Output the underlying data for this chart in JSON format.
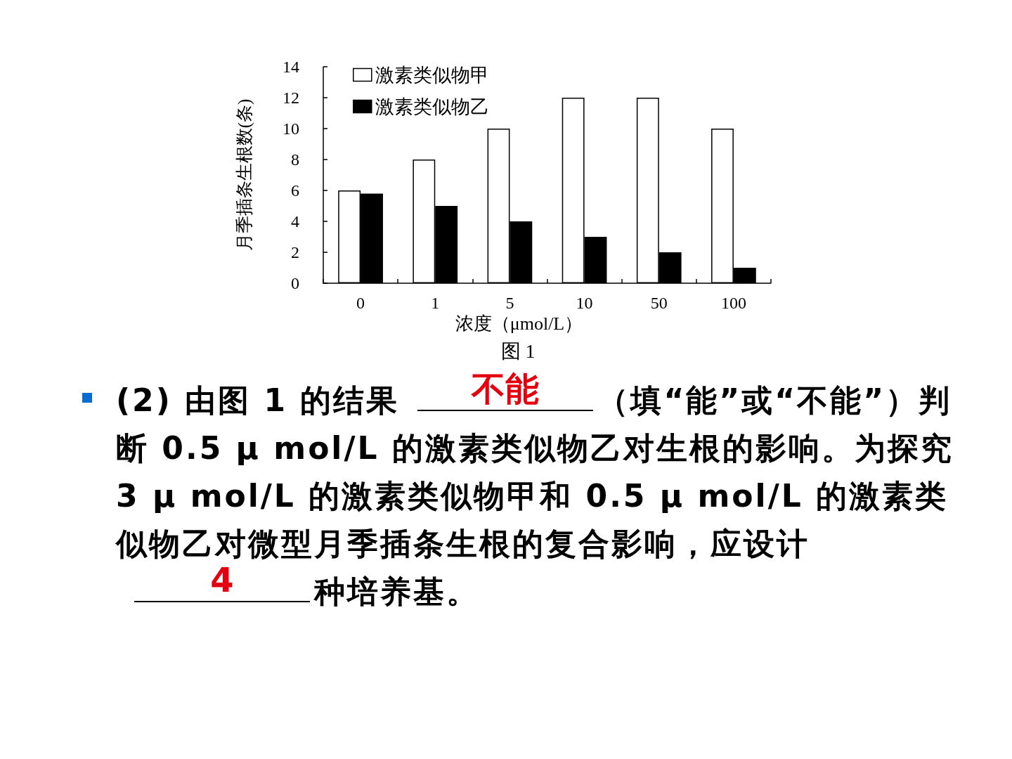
{
  "chart_data": {
    "type": "bar",
    "title": "图 1",
    "xlabel": "浓度（μmol/L）",
    "ylabel": "月季插条生根数(条)",
    "categories": [
      "0",
      "1",
      "5",
      "10",
      "50",
      "100"
    ],
    "series": [
      {
        "name": "激素类似物甲",
        "color": "#ffffff",
        "values": [
          6,
          8,
          10,
          12,
          12,
          10
        ]
      },
      {
        "name": "激素类似物乙",
        "color": "#000000",
        "values": [
          5.8,
          5,
          4,
          3,
          2,
          1
        ]
      }
    ],
    "ylim": [
      0,
      14
    ],
    "yticks": [
      0,
      2,
      4,
      6,
      8,
      10,
      12,
      14
    ],
    "grid": false,
    "legend": "top left",
    "annotations": [
      "(2) 由图 1 的结果",
      "不能",
      "（填“能”或“不能”）判断 0.5 μ mol/L 的激素类似物乙对生根的影响。为探究 3  μ mol/L 的激素类似物甲和 0.5 μ mol/L 的激素类似物乙对微型月季插条生根的复合影响，应设计",
      "4",
      "种培养基。"
    ]
  }
}
